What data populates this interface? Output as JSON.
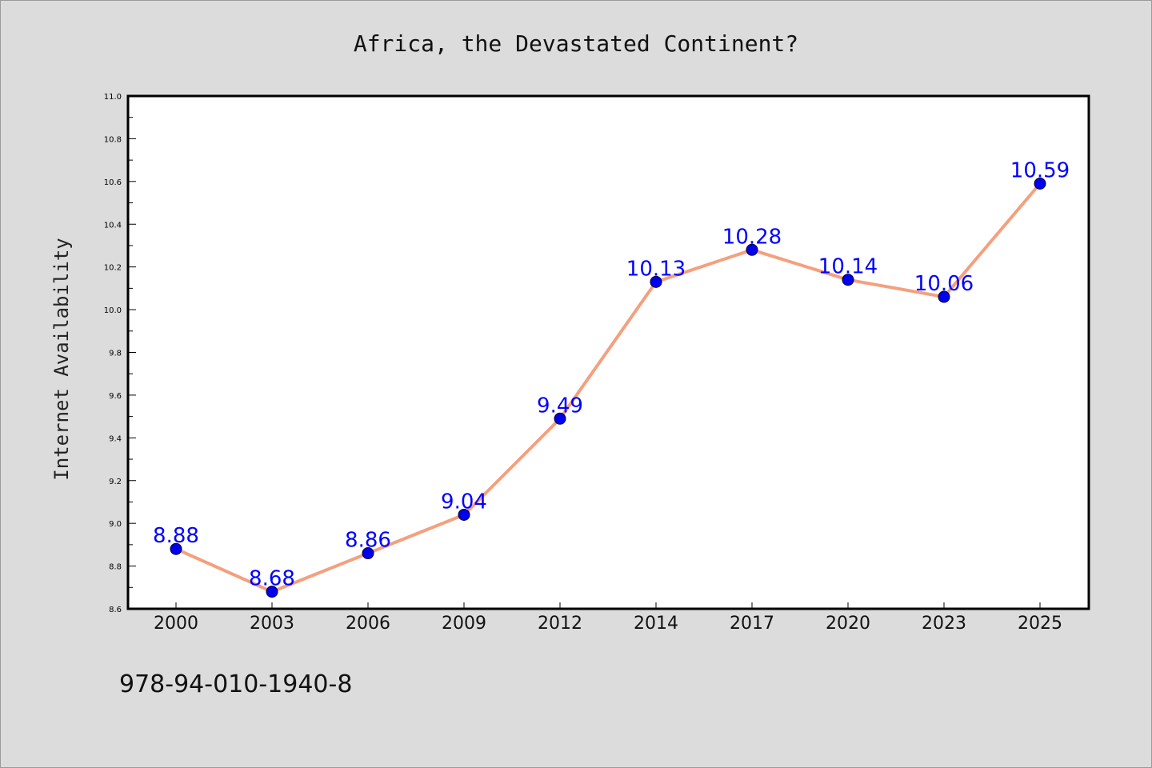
{
  "page": {
    "footer_text": "978-94-010-1940-8"
  },
  "colors": {
    "background": "#dcdcdc",
    "plot_background": "#ffffff",
    "line": "#f4a07e",
    "marker": "#0000ee",
    "value_label": "#0000ff"
  },
  "chart_data": {
    "type": "line",
    "title": "Africa, the Devastated Continent?",
    "xlabel": "",
    "ylabel": "Internet Availability",
    "categories": [
      "2000",
      "2003",
      "2006",
      "2009",
      "2012",
      "2014",
      "2017",
      "2020",
      "2023",
      "2025"
    ],
    "series": [
      {
        "values": [
          8.88,
          8.68,
          8.86,
          9.04,
          9.49,
          10.13,
          10.28,
          10.14,
          10.06,
          10.59
        ],
        "labels": [
          "8.88",
          "8.68",
          "8.86",
          "9.04",
          "9.49",
          "10.13",
          "10.28",
          "10.14",
          "10.06",
          "10.59"
        ]
      }
    ],
    "ylim": [
      8.6,
      11.0
    ],
    "yticks": [
      "8.6",
      "8.8",
      "9.0",
      "9.2",
      "9.4",
      "9.6",
      "9.8",
      "10.0",
      "10.2",
      "10.4",
      "10.6",
      "10.8",
      "11.0"
    ],
    "grid": false,
    "legend": "none",
    "markers": "filled circles"
  }
}
